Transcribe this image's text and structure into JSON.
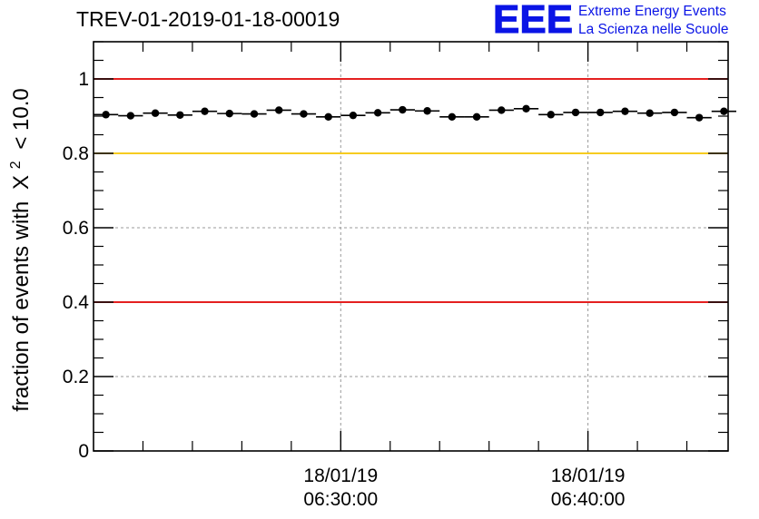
{
  "chart_data": {
    "type": "scatter",
    "title": "TREV-01-2019-01-18-00019",
    "ylabel": "fraction of events with",
    "ylabel_chi_symbol": "X",
    "ylabel_superscript": "2",
    "ylabel_condition": "< 10.0",
    "xlabel": "",
    "ylim": [
      0,
      1.1
    ],
    "y_ticks": [
      "0",
      "0.2",
      "0.4",
      "0.6",
      "0.8",
      "1"
    ],
    "y_tick_values": [
      0,
      0.2,
      0.4,
      0.6,
      0.8,
      1.0
    ],
    "x_range_minutes": [
      20.0,
      45.67
    ],
    "x_ticks": [
      {
        "minute": 30,
        "date": "18/01/19",
        "time": "06:30:00"
      },
      {
        "minute": 40,
        "date": "18/01/19",
        "time": "06:40:00"
      }
    ],
    "grid": true,
    "reference_lines": [
      {
        "y": 1.0,
        "color": "#e00000"
      },
      {
        "y": 0.8,
        "color": "#f5c400"
      },
      {
        "y": 0.4,
        "color": "#e00000"
      }
    ],
    "x_error_half_width_minutes": 0.5,
    "series": [
      {
        "name": "fraction",
        "x": [
          20.5,
          21.5,
          22.5,
          23.5,
          24.5,
          25.5,
          26.5,
          27.5,
          28.5,
          29.5,
          30.5,
          31.5,
          32.5,
          33.5,
          34.5,
          35.5,
          36.5,
          37.5,
          38.5,
          39.5,
          40.5,
          41.5,
          42.5,
          43.5,
          44.5,
          45.5
        ],
        "values": [
          0.904,
          0.901,
          0.908,
          0.903,
          0.913,
          0.907,
          0.906,
          0.916,
          0.906,
          0.898,
          0.902,
          0.909,
          0.917,
          0.914,
          0.898,
          0.898,
          0.916,
          0.92,
          0.904,
          0.91,
          0.91,
          0.913,
          0.908,
          0.91,
          0.896,
          0.913
        ]
      }
    ]
  },
  "logo": {
    "mark": "EEE",
    "line1": "Extreme Energy Events",
    "line2": "La Scienza nelle Scuole"
  }
}
